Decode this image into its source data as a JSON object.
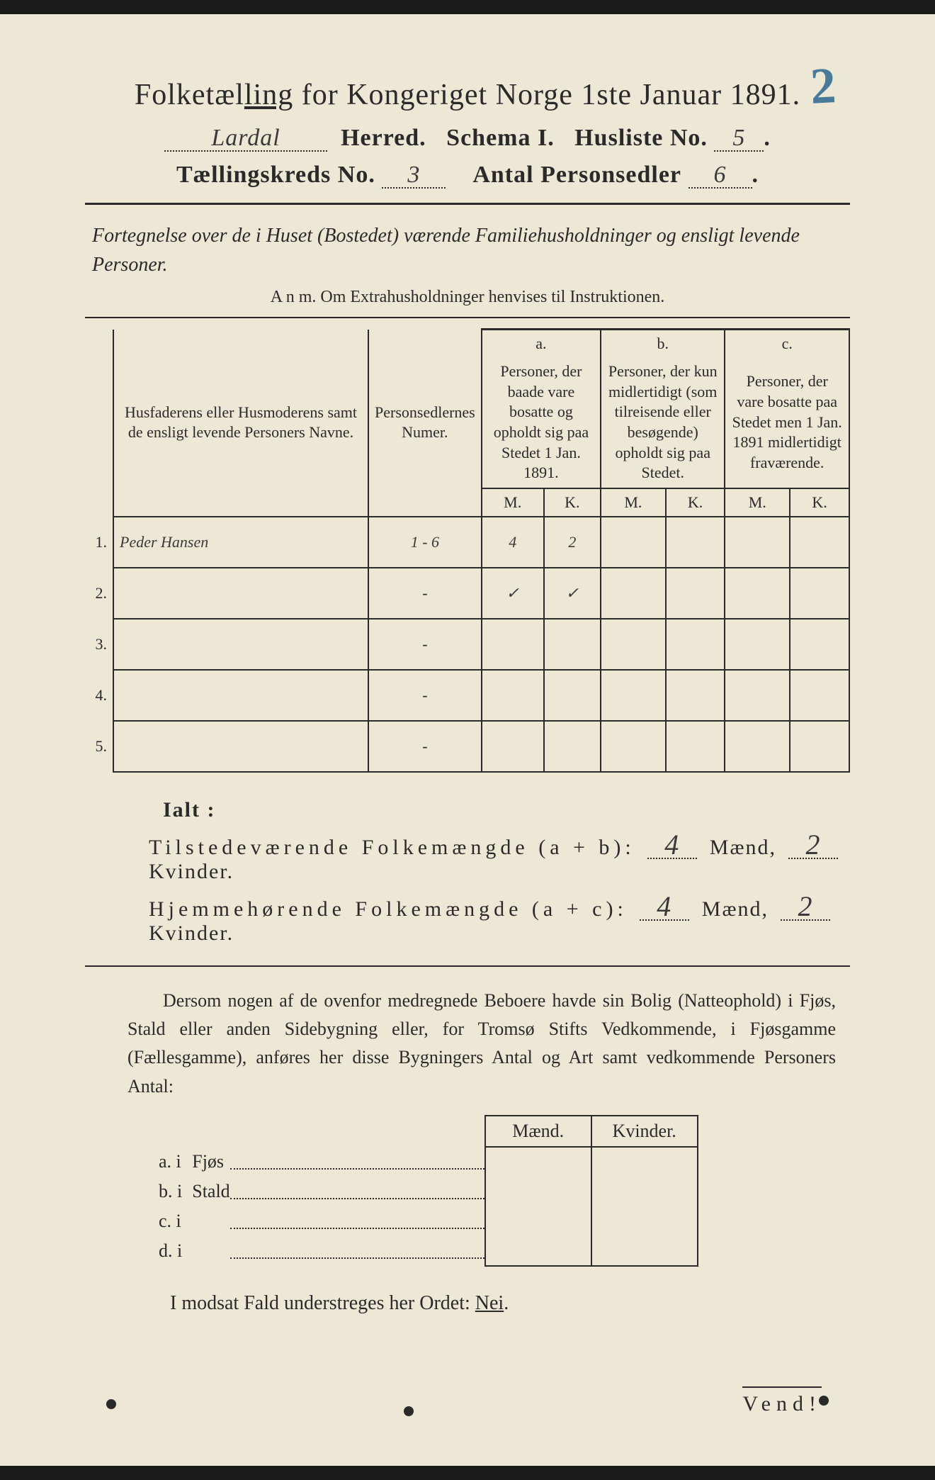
{
  "header": {
    "title_prefix": "Folketæl",
    "title_underlined": "ling",
    "title_suffix": " for Kongeriget Norge 1ste Januar 1891.",
    "annotation": "2",
    "herred_value": "Lardal",
    "herred_label": "Herred.",
    "schema_label": "Schema I.",
    "husliste_label": "Husliste No.",
    "husliste_value": "5",
    "kreds_label": "Tællingskreds No.",
    "kreds_value": "3",
    "antal_label": "Antal Personsedler",
    "antal_value": "6"
  },
  "subtitle": "Fortegnelse over de i Huset (Bostedet) værende Familiehusholdninger og ensligt levende Personer.",
  "anm": "A n m.  Om Extrahusholdninger henvises til Instruktionen.",
  "table": {
    "col_names_header": "Husfaderens eller Husmoderens samt de ensligt levende Personers Navne.",
    "col_numer_header": "Personsedlernes Numer.",
    "col_a": "a.",
    "col_a_desc": "Personer, der baade vare bosatte og opholdt sig paa Stedet 1 Jan. 1891.",
    "col_b": "b.",
    "col_b_desc": "Personer, der kun midlertidigt (som tilreisende eller besøgende) opholdt sig paa Stedet.",
    "col_c": "c.",
    "col_c_desc": "Personer, der vare bosatte paa Stedet men 1 Jan. 1891 midlertidigt fraværende.",
    "M": "M.",
    "K": "K.",
    "rows": [
      {
        "n": "1.",
        "name": "Peder Hansen",
        "num": "1 - 6",
        "aM": "4",
        "aK": "2",
        "bM": "",
        "bK": "",
        "cM": "",
        "cK": ""
      },
      {
        "n": "2.",
        "name": "",
        "num": "-",
        "aM": "✓",
        "aK": "✓",
        "bM": "",
        "bK": "",
        "cM": "",
        "cK": ""
      },
      {
        "n": "3.",
        "name": "",
        "num": "-",
        "aM": "",
        "aK": "",
        "bM": "",
        "bK": "",
        "cM": "",
        "cK": ""
      },
      {
        "n": "4.",
        "name": "",
        "num": "-",
        "aM": "",
        "aK": "",
        "bM": "",
        "bK": "",
        "cM": "",
        "cK": ""
      },
      {
        "n": "5.",
        "name": "",
        "num": "-",
        "aM": "",
        "aK": "",
        "bM": "",
        "bK": "",
        "cM": "",
        "cK": ""
      }
    ]
  },
  "ialt": {
    "label": "Ialt :",
    "line1_prefix": "Tilstedeværende Folkemængde (a + b):",
    "line1_m": "4",
    "line1_k": "2",
    "line2_prefix": "Hjemmehørende Folkemængde (a + c):",
    "line2_m": "4",
    "line2_k": "2",
    "maend": "Mænd,",
    "kvinder": "Kvinder."
  },
  "paragraph": "Dersom nogen af de ovenfor medregnede Beboere havde sin Bolig (Natteophold) i Fjøs, Stald eller anden Sidebygning eller, for Tromsø Stifts Vedkommende, i Fjøsgamme (Fællesgamme), anføres her disse Bygningers Antal og Art samt vedkommende Personers Antal:",
  "subtable": {
    "head_m": "Mænd.",
    "head_k": "Kvinder.",
    "rows": [
      {
        "l": "a.  i",
        "t": "Fjøs"
      },
      {
        "l": "b.  i",
        "t": "Stald"
      },
      {
        "l": "c.  i",
        "t": ""
      },
      {
        "l": "d.  i",
        "t": ""
      }
    ]
  },
  "nei_line_prefix": "I modsat Fald understreges her Ordet: ",
  "nei_word": "Nei",
  "vend": "Vend!"
}
